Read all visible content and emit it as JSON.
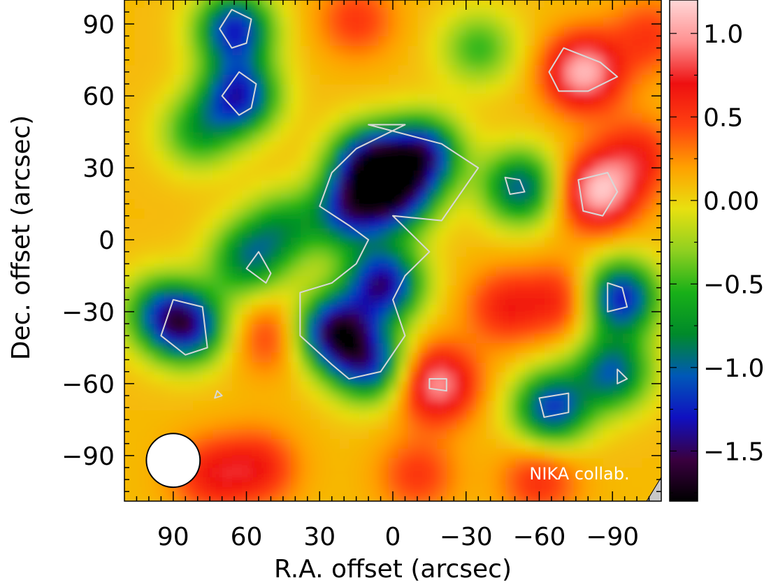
{
  "chart_data": {
    "type": "heatmap",
    "xlabel": "R.A. offset (arcsec)",
    "ylabel": "Dec. offset (arcsec)",
    "xlim": [
      110,
      -110
    ],
    "ylim": [
      -109,
      100
    ],
    "x_ticks": [
      90,
      60,
      30,
      0,
      -30,
      -60,
      -90
    ],
    "x_tick_labels": [
      "90",
      "60",
      "30",
      "0",
      "−30",
      "−60",
      "−90"
    ],
    "y_ticks": [
      90,
      60,
      30,
      0,
      -30,
      -60,
      -90
    ],
    "y_tick_labels": [
      "90",
      "60",
      "30",
      "0",
      "−30",
      "−60",
      "−90"
    ],
    "colorbar": {
      "range": [
        -1.8,
        1.2
      ],
      "ticks": [
        1.0,
        0.5,
        0.0,
        -0.5,
        -1.0,
        -1.5
      ],
      "tick_labels": [
        "1.0",
        "0.5",
        "0.00",
        "−0.5",
        "−1.0",
        "−1.5"
      ],
      "colors": [
        "#000000",
        "#3a0040",
        "#1010c0",
        "#0058b8",
        "#008a2a",
        "#18b018",
        "#90d020",
        "#e8e010",
        "#ffa000",
        "#ff4010",
        "#ee1010",
        "#ff9090",
        "#ffd8d8"
      ]
    },
    "background_value": 0.1,
    "features": [
      {
        "x": 10,
        "y": 32,
        "value": -1.4
      },
      {
        "x": -2,
        "y": 18,
        "value": -1.1
      },
      {
        "x": 18,
        "y": 12,
        "value": -1.1
      },
      {
        "x": 4,
        "y": -18,
        "value": -1.4
      },
      {
        "x": 24,
        "y": -38,
        "value": -1.5
      },
      {
        "x": 10,
        "y": -52,
        "value": -1.1
      },
      {
        "x": -12,
        "y": 36,
        "value": -1.3
      },
      {
        "x": 65,
        "y": 88,
        "value": -1.25
      },
      {
        "x": 63,
        "y": 60,
        "value": -1.25
      },
      {
        "x": 84,
        "y": -36,
        "value": -1.2
      },
      {
        "x": 96,
        "y": -30,
        "value": -0.7
      },
      {
        "x": 60,
        "y": -8,
        "value": -0.8
      },
      {
        "x": 45,
        "y": 5,
        "value": -0.6
      },
      {
        "x": -93,
        "y": -24,
        "value": -1.3
      },
      {
        "x": -90,
        "y": -55,
        "value": -1.0
      },
      {
        "x": -65,
        "y": -70,
        "value": -1.15
      },
      {
        "x": -52,
        "y": 22,
        "value": -1.0
      },
      {
        "x": -35,
        "y": 80,
        "value": -0.5
      },
      {
        "x": 80,
        "y": 45,
        "value": -0.6
      },
      {
        "x": -78,
        "y": 70,
        "value": 1.1
      },
      {
        "x": -84,
        "y": 20,
        "value": 1.1
      },
      {
        "x": -18,
        "y": -60,
        "value": 1.0
      },
      {
        "x": -46,
        "y": -28,
        "value": 0.6
      },
      {
        "x": -70,
        "y": -25,
        "value": 0.6
      },
      {
        "x": -100,
        "y": 35,
        "value": 0.6
      },
      {
        "x": -105,
        "y": 85,
        "value": 0.5
      },
      {
        "x": 55,
        "y": -95,
        "value": 0.6
      },
      {
        "x": 75,
        "y": -98,
        "value": 0.6
      },
      {
        "x": -10,
        "y": -98,
        "value": 0.5
      },
      {
        "x": -60,
        "y": -100,
        "value": 0.55
      },
      {
        "x": 15,
        "y": 92,
        "value": 0.5
      },
      {
        "x": 50,
        "y": -40,
        "value": 0.5
      }
    ],
    "contours": [
      [
        [
          -5,
          48
        ],
        [
          10,
          48
        ],
        [
          -20,
          40
        ],
        [
          -35,
          30
        ],
        [
          -20,
          8
        ],
        [
          0,
          10
        ],
        [
          -15,
          -5
        ],
        [
          -5,
          -15
        ],
        [
          0,
          -25
        ],
        [
          -5,
          -40
        ],
        [
          5,
          -55
        ],
        [
          18,
          -58
        ],
        [
          25,
          -52
        ],
        [
          38,
          -40
        ],
        [
          38,
          -22
        ],
        [
          25,
          -18
        ],
        [
          15,
          -10
        ],
        [
          10,
          0
        ],
        [
          18,
          6
        ],
        [
          30,
          14
        ],
        [
          25,
          28
        ],
        [
          15,
          38
        ]
      ],
      [
        [
          66,
          96
        ],
        [
          71,
          88
        ],
        [
          66,
          80
        ],
        [
          60,
          82
        ],
        [
          58,
          92
        ]
      ],
      [
        [
          63,
          70
        ],
        [
          70,
          60
        ],
        [
          63,
          52
        ],
        [
          58,
          55
        ],
        [
          56,
          65
        ]
      ],
      [
        [
          -70,
          80
        ],
        [
          -85,
          74
        ],
        [
          -92,
          68
        ],
        [
          -80,
          62
        ],
        [
          -68,
          62
        ],
        [
          -64,
          70
        ]
      ],
      [
        [
          -88,
          28
        ],
        [
          -92,
          20
        ],
        [
          -86,
          10
        ],
        [
          -78,
          12
        ],
        [
          -76,
          25
        ]
      ],
      [
        [
          -46,
          26
        ],
        [
          -52,
          25
        ],
        [
          -54,
          20
        ],
        [
          -48,
          19
        ]
      ],
      [
        [
          -88,
          -18
        ],
        [
          -94,
          -20
        ],
        [
          -96,
          -28
        ],
        [
          -88,
          -30
        ]
      ],
      [
        [
          -92,
          -54
        ],
        [
          -96,
          -58
        ],
        [
          -92,
          -60
        ]
      ],
      [
        [
          -60,
          -66
        ],
        [
          -72,
          -64
        ],
        [
          -72,
          -72
        ],
        [
          -62,
          -74
        ]
      ],
      [
        [
          -15,
          -58
        ],
        [
          -22,
          -58
        ],
        [
          -22,
          -63
        ],
        [
          -15,
          -62
        ]
      ],
      [
        [
          78,
          -28
        ],
        [
          90,
          -25
        ],
        [
          95,
          -40
        ],
        [
          85,
          -48
        ],
        [
          76,
          -45
        ]
      ],
      [
        [
          55,
          -5
        ],
        [
          60,
          -12
        ],
        [
          52,
          -18
        ],
        [
          50,
          -14
        ]
      ],
      [
        [
          72,
          -63
        ],
        [
          73,
          -66
        ],
        [
          70,
          -65
        ]
      ]
    ],
    "beam": {
      "x": 90,
      "y": -92,
      "diameter_arcsec": 22
    },
    "credit": "NIKA collab."
  }
}
